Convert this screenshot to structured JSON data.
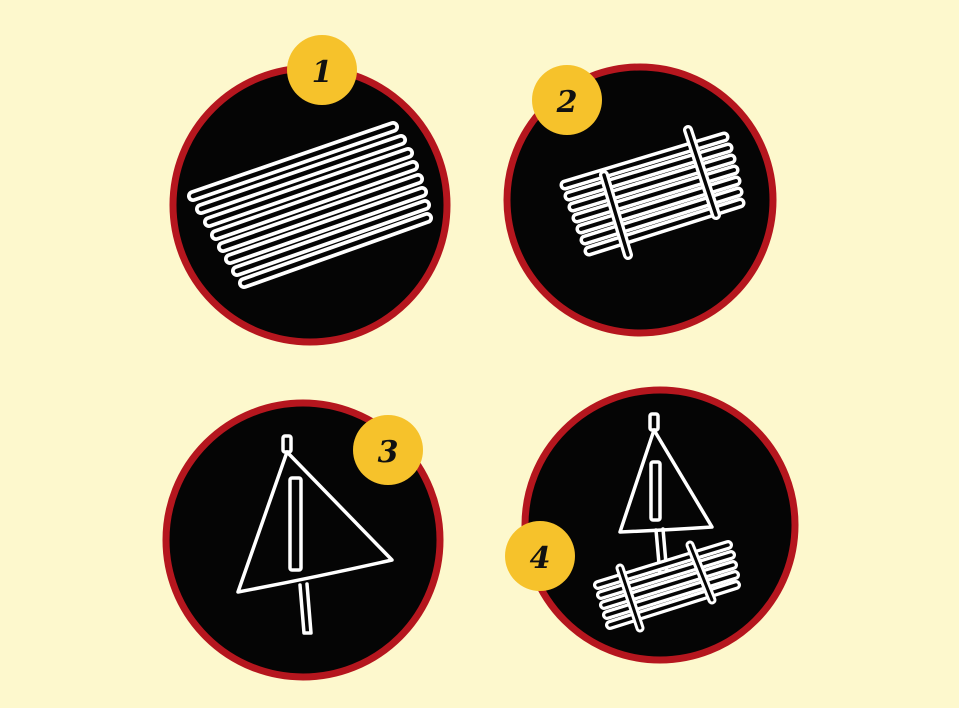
{
  "colors": {
    "background": "#fdf8cd",
    "circle_fill": "#050505",
    "circle_ring": "#b5161e",
    "badge_fill": "#f6c22b",
    "badge_text": "#111111",
    "chalk": "#ffffff"
  },
  "steps": [
    {
      "number": "1",
      "illustration": "row-of-sticks"
    },
    {
      "number": "2",
      "illustration": "raft-with-crossbars"
    },
    {
      "number": "3",
      "illustration": "triangular-sail-on-mast"
    },
    {
      "number": "4",
      "illustration": "raft-with-sail"
    }
  ]
}
